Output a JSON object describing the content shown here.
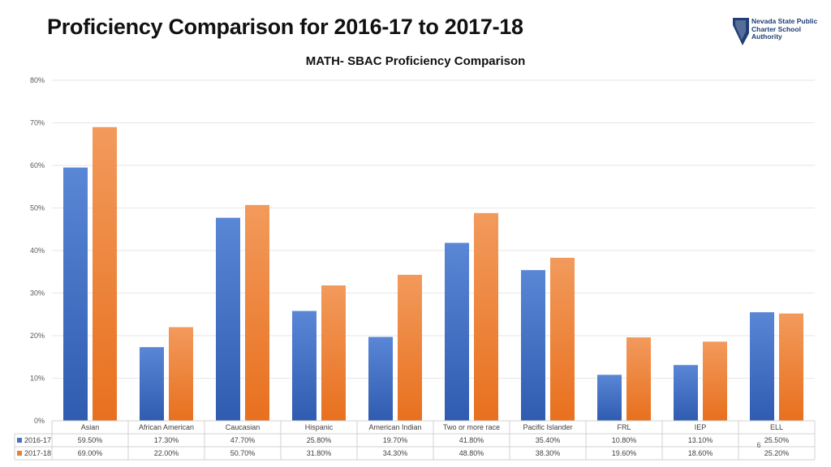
{
  "header": {
    "title": "Proficiency Comparison for 2016-17 to 2017-18",
    "logo_lines": [
      "Nevada State Public",
      "Charter School",
      "Authority"
    ],
    "page_number": "6"
  },
  "colors": {
    "series_2016_17": "#4472c4",
    "series_2017_18": "#ed7d31",
    "grid": "#e6e6e6"
  },
  "chart_data": {
    "type": "bar",
    "title": "MATH- SBAC Proficiency Comparison",
    "xlabel": "",
    "ylabel": "",
    "ylim": [
      0,
      80
    ],
    "yticks": [
      "0%",
      "10%",
      "20%",
      "30%",
      "40%",
      "50%",
      "60%",
      "70%",
      "80%"
    ],
    "grid": true,
    "legend": "data-table",
    "categories": [
      "Asian",
      "African American",
      "Caucasian",
      "Hispanic",
      "American Indian",
      "Two or more race",
      "Pacific Islander",
      "FRL",
      "IEP",
      "ELL"
    ],
    "series": [
      {
        "name": "2016-17",
        "values": [
          59.5,
          17.3,
          47.7,
          25.8,
          19.7,
          41.8,
          35.4,
          10.8,
          13.1,
          25.5
        ],
        "labels": [
          "59.50%",
          "17.30%",
          "47.70%",
          "25.80%",
          "19.70%",
          "41.80%",
          "35.40%",
          "10.80%",
          "13.10%",
          "25.50%"
        ]
      },
      {
        "name": "2017-18",
        "values": [
          69.0,
          22.0,
          50.7,
          31.8,
          34.3,
          48.8,
          38.3,
          19.6,
          18.6,
          25.2
        ],
        "labels": [
          "69.00%",
          "22.00%",
          "50.70%",
          "31.80%",
          "34.30%",
          "48.80%",
          "38.30%",
          "19.60%",
          "18.60%",
          "25.20%"
        ]
      }
    ]
  }
}
